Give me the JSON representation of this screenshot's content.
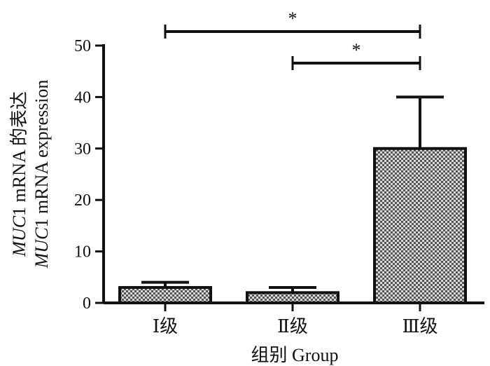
{
  "chart_data": {
    "type": "bar",
    "categories": [
      "Ⅰ级",
      "Ⅱ级",
      "Ⅲ级"
    ],
    "values": [
      3,
      2,
      30
    ],
    "errors": [
      1,
      1,
      10
    ],
    "xlabel": "组别 Group",
    "ylabel_lines": [
      {
        "italic": "MUC",
        "rest": "1 mRNA 的表达"
      },
      {
        "italic": "MUC",
        "rest": "1 mRNA expression"
      }
    ],
    "ylim": [
      0,
      50
    ],
    "yticks": [
      0,
      10,
      20,
      30,
      40,
      50
    ],
    "grid": false,
    "bar_pattern": "checkered",
    "significance": [
      {
        "from": 0,
        "to": 2,
        "label": "*"
      },
      {
        "from": 1,
        "to": 2,
        "label": "*"
      }
    ],
    "colors": {
      "bar_dark": "#555555",
      "bar_light": "#d8d8d8",
      "axis": "#111111"
    }
  }
}
